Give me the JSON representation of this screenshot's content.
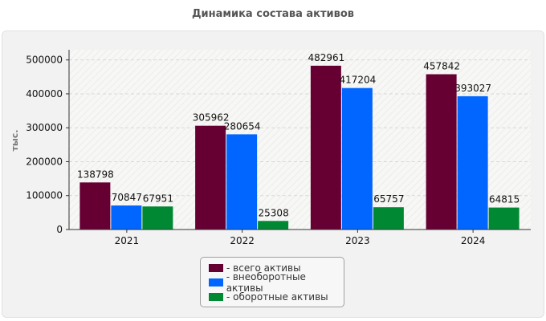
{
  "chart_data": {
    "type": "bar",
    "title": "Динамика состава активов",
    "ylabel": "тыс.",
    "xlabel": "",
    "categories": [
      "2021",
      "2022",
      "2023",
      "2024"
    ],
    "ylim": [
      0,
      530000
    ],
    "yticks": [
      0,
      100000,
      200000,
      300000,
      400000,
      500000
    ],
    "grid": true,
    "legend_position": "bottom-center",
    "series": [
      {
        "name": "всего активы",
        "color": "#660033",
        "values": [
          138798,
          305962,
          482961,
          457842
        ]
      },
      {
        "name": "внеоборотные активы",
        "color": "#0066ff",
        "values": [
          70847,
          280654,
          417204,
          393027
        ]
      },
      {
        "name": "оборотные активы",
        "color": "#008833",
        "values": [
          67951,
          25308,
          65757,
          64815
        ]
      }
    ]
  }
}
